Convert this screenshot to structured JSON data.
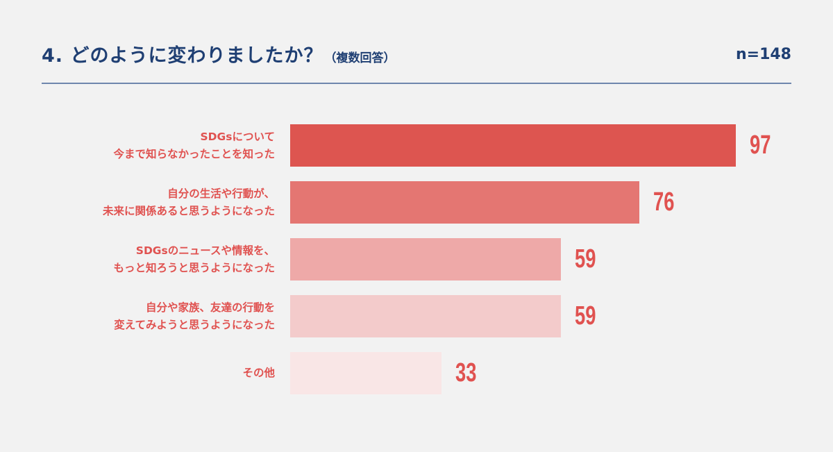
{
  "header": {
    "title": "4. どのように変わりましたか？",
    "subtitle": "（複数回答）",
    "sample_size": "n=148"
  },
  "colors": {
    "title": "#1f3f73",
    "rule": "#6f86ad",
    "label": "#e05250",
    "bars": [
      "#dd5550",
      "#e47672",
      "#eea9a8",
      "#f3cbcb",
      "#f9e6e6"
    ]
  },
  "chart_data": {
    "type": "bar",
    "orientation": "horizontal",
    "title": "4. どのように変わりましたか？（複数回答）",
    "categories": [
      "SDGsについて\n今まで知らなかったことを知った",
      "自分の生活や行動が、\n未来に関係あると思うようになった",
      "SDGsのニュースや情報を、\nもっと知ろうと思うようになった",
      "自分や家族、友達の行動を\n変えてみようと思うようになった",
      "その他"
    ],
    "values": [
      97,
      76,
      59,
      59,
      33
    ],
    "value_labels": [
      "97",
      "76",
      "59",
      "59",
      "33"
    ],
    "xlim": [
      0,
      97
    ],
    "grid": false,
    "legend": "none"
  }
}
